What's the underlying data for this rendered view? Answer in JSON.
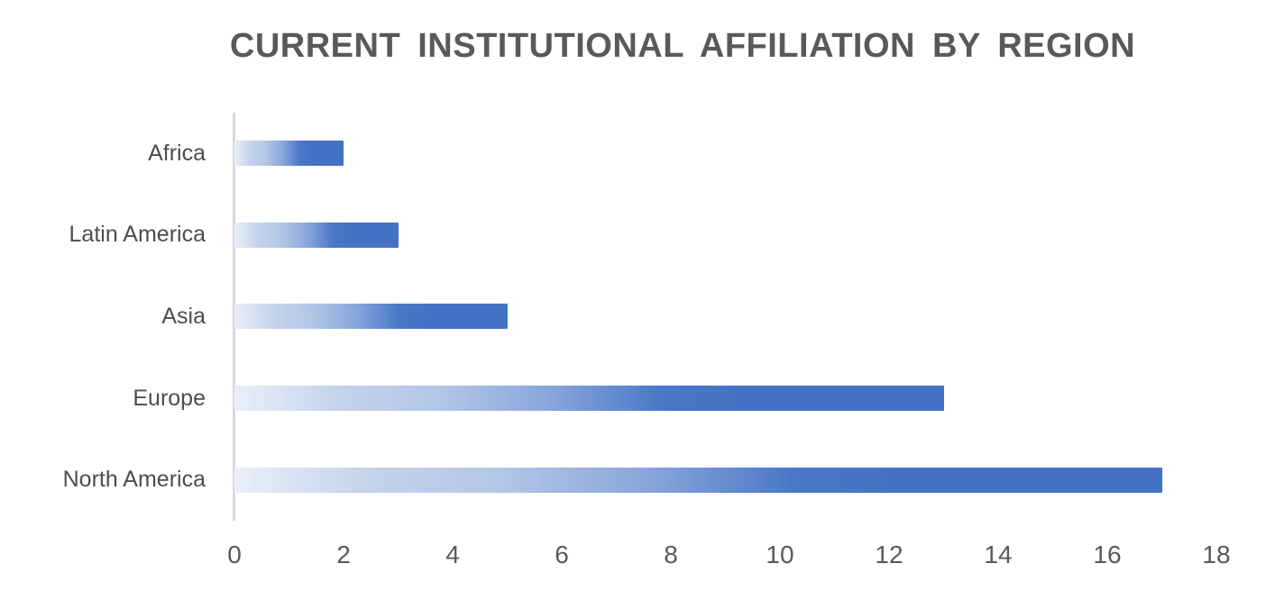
{
  "chart_data": {
    "type": "bar",
    "orientation": "horizontal",
    "title": "CURRENT INSTITUTIONAL AFFILIATION BY REGION",
    "categories": [
      "Africa",
      "Latin America",
      "Asia",
      "Europe",
      "North America"
    ],
    "values": [
      2,
      3,
      5,
      13,
      17
    ],
    "xlabel": "",
    "ylabel": "",
    "xlim": [
      0,
      18
    ],
    "x_ticks": [
      0,
      2,
      4,
      6,
      8,
      10,
      12,
      14,
      16,
      18
    ],
    "grid": false,
    "legend": false,
    "colors": {
      "bar_gradient_stops": [
        {
          "color": "#eaeff9",
          "pos": 0
        },
        {
          "color": "#c5d3ec",
          "pos": 14
        },
        {
          "color": "#b4c7e7",
          "pos": 28
        },
        {
          "color": "#8aa7db",
          "pos": 44
        },
        {
          "color": "#4a78c8",
          "pos": 60
        },
        {
          "color": "#4472c4",
          "pos": 72
        }
      ],
      "bar_end": "#4472c4",
      "axis_line": "#d9d9d9",
      "title_text": "#595959",
      "category_text": "#4d4d4d",
      "tick_text": "#595959",
      "background": "#ffffff"
    }
  }
}
